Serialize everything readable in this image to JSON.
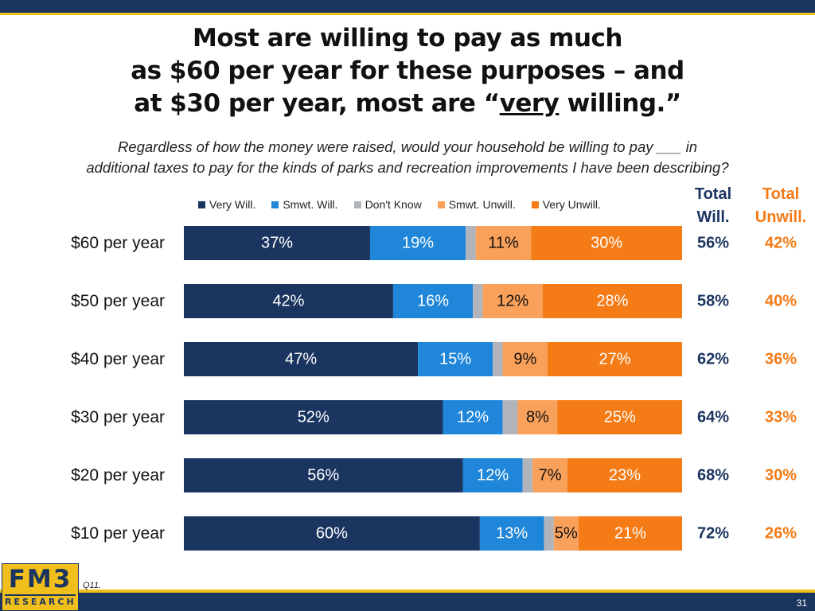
{
  "title": {
    "line1": "Most are willing to pay as much",
    "line2": "as $60 per year for these purposes – and",
    "line3_before": "at $30 per year, most are “",
    "line3_underlined": "very",
    "line3_after": " willing.”"
  },
  "subtitle": {
    "line1": "Regardless of how the money were raised, would your household be willing to pay ___ in",
    "line2": "additional taxes to pay for the kinds of parks and recreation improvements I have been describing?"
  },
  "columns": {
    "total_will_line1": "Total",
    "total_will_line2": "Will.",
    "total_unwill_line1": "Total",
    "total_unwill_line2": "Unwill."
  },
  "colors": {
    "navy": "#1b3561",
    "blue": "#1f86d9",
    "gray": "#b1b4ba",
    "light_orange": "#f9a05a",
    "orange": "#f47b16",
    "gold": "#f1bf1b"
  },
  "chart_data": {
    "type": "bar",
    "orientation": "horizontal",
    "stacked": true,
    "percent_scale": true,
    "xlim": [
      0,
      100
    ],
    "categories": [
      "$60 per year",
      "$50 per year",
      "$40 per year",
      "$30 per year",
      "$20 per year",
      "$10 per year"
    ],
    "series": [
      {
        "name": "Very Will.",
        "color": "#1b3561",
        "label_color": "#ffffff",
        "values": [
          37,
          42,
          47,
          52,
          56,
          60
        ],
        "labels": [
          "37%",
          "42%",
          "47%",
          "52%",
          "56%",
          "60%"
        ]
      },
      {
        "name": "Smwt. Will.",
        "color": "#1f86d9",
        "label_color": "#ffffff",
        "values": [
          19,
          16,
          15,
          12,
          12,
          13
        ],
        "labels": [
          "19%",
          "16%",
          "15%",
          "12%",
          "12%",
          "13%"
        ]
      },
      {
        "name": "Don't Know",
        "color": "#b1b4ba",
        "label_color": "#ffffff",
        "values": [
          2,
          2,
          2,
          3,
          2,
          2
        ],
        "labels": [
          "",
          "",
          "",
          "",
          "",
          ""
        ]
      },
      {
        "name": "Smwt. Unwill.",
        "color": "#f9a05a",
        "label_color": "#111111",
        "values": [
          11,
          12,
          9,
          8,
          7,
          5
        ],
        "labels": [
          "11%",
          "12%",
          "9%",
          "8%",
          "7%",
          "5%"
        ]
      },
      {
        "name": "Very Unwill.",
        "color": "#f47b16",
        "label_color": "#ffffff",
        "values": [
          30,
          28,
          27,
          25,
          23,
          21
        ],
        "labels": [
          "30%",
          "28%",
          "27%",
          "25%",
          "23%",
          "21%"
        ]
      }
    ],
    "total_willing": [
      "56%",
      "58%",
      "62%",
      "64%",
      "68%",
      "72%"
    ],
    "total_unwilling": [
      "42%",
      "40%",
      "36%",
      "33%",
      "30%",
      "26%"
    ],
    "legend_position": "top"
  },
  "footer": {
    "logo_top": "FM3",
    "logo_bottom": "RESEARCH",
    "footnote": "Q11.",
    "page_number": "31"
  }
}
